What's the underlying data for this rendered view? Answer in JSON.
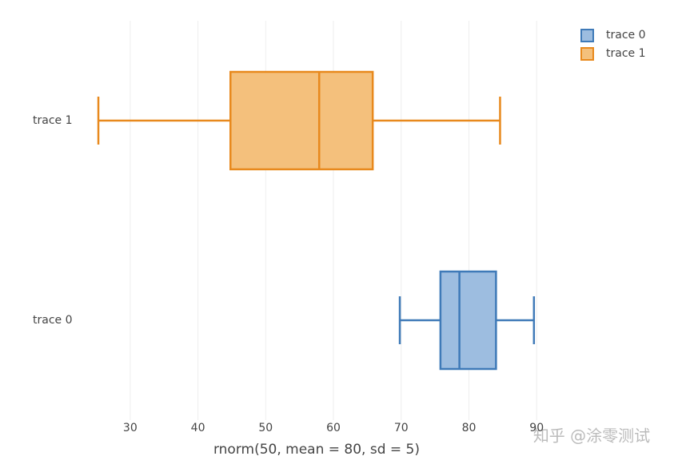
{
  "chart_data": {
    "type": "box",
    "x_label": "rnorm(50, mean = 80, sd = 5)",
    "series": [
      {
        "name": "trace 0",
        "color": "#3f7ab8",
        "fill": "#9dbde0",
        "min": 69.8,
        "q1": 75.8,
        "median": 78.6,
        "q3": 84.0,
        "max": 89.6
      },
      {
        "name": "trace 1",
        "color": "#e8891d",
        "fill": "#f4c07c",
        "min": 25.3,
        "q1": 44.8,
        "median": 57.9,
        "q3": 65.8,
        "max": 84.6
      }
    ],
    "xlim": [
      22.7,
      92.1
    ],
    "xticks": [
      30,
      40,
      50,
      60,
      70,
      80,
      90
    ],
    "grid": true,
    "legend": "top-right"
  },
  "watermark": "知乎 @涂零测试"
}
